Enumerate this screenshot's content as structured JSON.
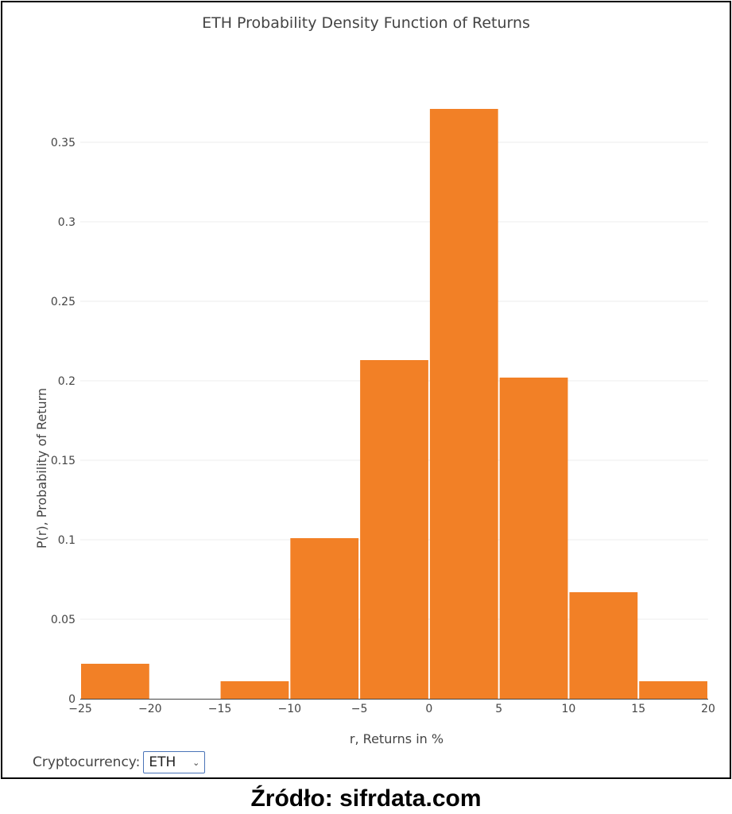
{
  "chart_data": {
    "type": "bar",
    "title": "ETH Probability Density Function of Returns",
    "xlabel": "r, Returns in %",
    "ylabel": "P(r), Probability of Return",
    "bin_edges": [
      -25,
      -20,
      -15,
      -10,
      -5,
      0,
      5,
      10,
      15,
      20
    ],
    "values": [
      0.022,
      0,
      0.011,
      0.101,
      0.213,
      0.371,
      0.202,
      0.067,
      0.011
    ],
    "xlim": [
      -25,
      20
    ],
    "ylim": [
      0,
      0.375
    ],
    "xticks": [
      -25,
      -20,
      -15,
      -10,
      -5,
      0,
      5,
      10,
      15,
      20
    ],
    "xtick_labels": [
      "−25",
      "−20",
      "−15",
      "−10",
      "−5",
      "0",
      "5",
      "10",
      "15",
      "20"
    ],
    "yticks": [
      0,
      0.05,
      0.1,
      0.15,
      0.2,
      0.25,
      0.3,
      0.35
    ],
    "ytick_labels": [
      "0",
      "0.05",
      "0.1",
      "0.15",
      "0.2",
      "0.25",
      "0.3",
      "0.35"
    ],
    "bar_color": "#f28026",
    "grid": true
  },
  "selector": {
    "label": "Cryptocurrency:",
    "value": "ETH"
  },
  "source": "Źródło: sifrdata.com"
}
